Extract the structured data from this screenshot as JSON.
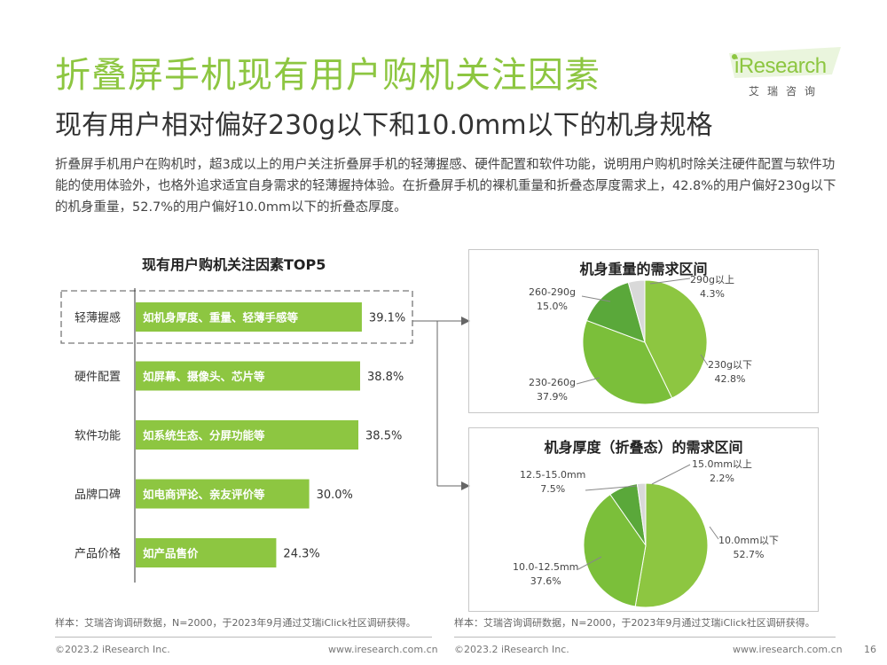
{
  "page": {
    "title": "折叠屏手机现有用户购机关注因素",
    "subtitle": "现有用户相对偏好230g以下和10.0mm以下的机身规格",
    "description": "折叠屏手机用户在购机时，超3成以上的用户关注折叠屏手机的轻薄握感、硬件配置和软件功能，说明用户购机时除关注硬件配置与软件功能的使用体验外，也格外追求适宜自身需求的轻薄握持体验。在折叠屏手机的裸机重量和折叠态厚度需求上，42.8%的用户偏好230g以下的机身重量，52.7%的用户偏好10.0mm以下的折叠态厚度。",
    "page_number": "16"
  },
  "logo": {
    "text": "iResearch",
    "cn": "艾瑞咨询"
  },
  "footer": {
    "left_note": "样本：艾瑞咨询调研数据，N=2000，于2023年9月通过艾瑞iClick社区调研获得。",
    "right_note": "样本：艾瑞咨询调研数据，N=2000，于2023年9月通过艾瑞iClick社区调研获得。",
    "copyright_left": "©2023.2 iResearch Inc.",
    "url_left": "www.iresearch.com.cn",
    "copyright_right": "©2023.2 iResearch Inc.",
    "url_right": "www.iresearch.com.cn"
  },
  "colors": {
    "green": "#8dc641",
    "dark_green": "#5aa83a",
    "gray": "#d9d9d9",
    "title_green": "#8dc641"
  },
  "chart_data": [
    {
      "type": "bar",
      "orientation": "horizontal",
      "title": "现有用户购机关注因素TOP5",
      "categories": [
        "轻薄握感",
        "硬件配置",
        "软件功能",
        "品牌口碑",
        "产品价格"
      ],
      "descriptions": [
        "如机身厚度、重量、轻薄手感等",
        "如屏幕、摄像头、芯片等",
        "如系统生态、分屏功能等",
        "如电商评论、亲友评价等",
        "如产品售价"
      ],
      "values": [
        39.1,
        38.8,
        38.5,
        30.0,
        24.3
      ],
      "labels": [
        "39.1%",
        "38.8%",
        "38.5%",
        "30.0%",
        "24.3%"
      ],
      "highlight": "轻薄握感",
      "color": "#8dc641"
    },
    {
      "type": "pie",
      "title": "机身重量的需求区间",
      "slices": [
        {
          "name": "230g以下",
          "value": 42.8,
          "label": "42.8%",
          "color": "#8dc641"
        },
        {
          "name": "230-260g",
          "value": 37.9,
          "label": "37.9%",
          "color": "#7bbf3a"
        },
        {
          "name": "260-290g",
          "value": 15.0,
          "label": "15.0%",
          "color": "#5aa83a"
        },
        {
          "name": "290g以上",
          "value": 4.3,
          "label": "4.3%",
          "color": "#d9d9d9"
        }
      ]
    },
    {
      "type": "pie",
      "title": "机身厚度（折叠态）的需求区间",
      "slices": [
        {
          "name": "10.0mm以下",
          "value": 52.7,
          "label": "52.7%",
          "color": "#8dc641"
        },
        {
          "name": "10.0-12.5mm",
          "value": 37.6,
          "label": "37.6%",
          "color": "#7bbf3a"
        },
        {
          "name": "12.5-15.0mm",
          "value": 7.5,
          "label": "7.5%",
          "color": "#5aa83a"
        },
        {
          "name": "15.0mm以上",
          "value": 2.2,
          "label": "2.2%",
          "color": "#d9d9d9"
        }
      ]
    }
  ]
}
